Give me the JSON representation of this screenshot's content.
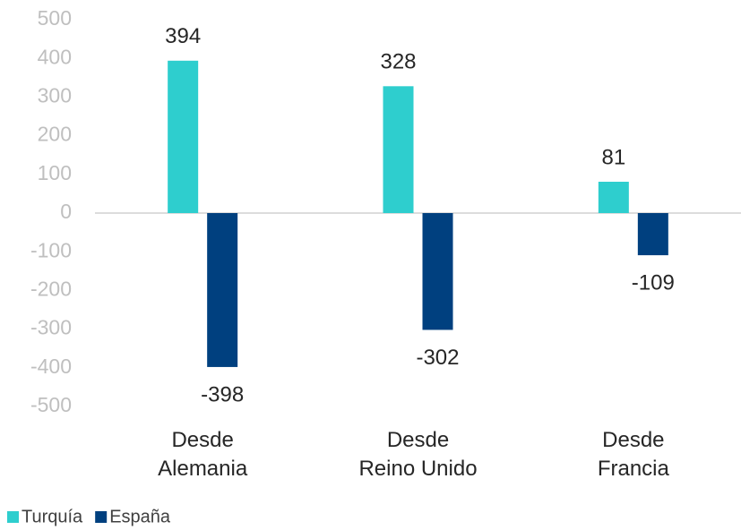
{
  "chart_data": {
    "type": "bar",
    "categories": [
      "Desde Alemania",
      "Desde Reino Unido",
      "Desde Francia"
    ],
    "series": [
      {
        "name": "Turquía",
        "color": "#2ecece",
        "values": [
          394,
          328,
          81
        ]
      },
      {
        "name": "España",
        "color": "#00407f",
        "values": [
          -398,
          -302,
          -109
        ]
      }
    ],
    "ylim": [
      -500,
      500
    ],
    "yticks": [
      -500,
      -400,
      -300,
      -200,
      -100,
      0,
      100,
      200,
      300,
      400,
      500
    ],
    "grid": false,
    "legend": "bottom-left"
  }
}
